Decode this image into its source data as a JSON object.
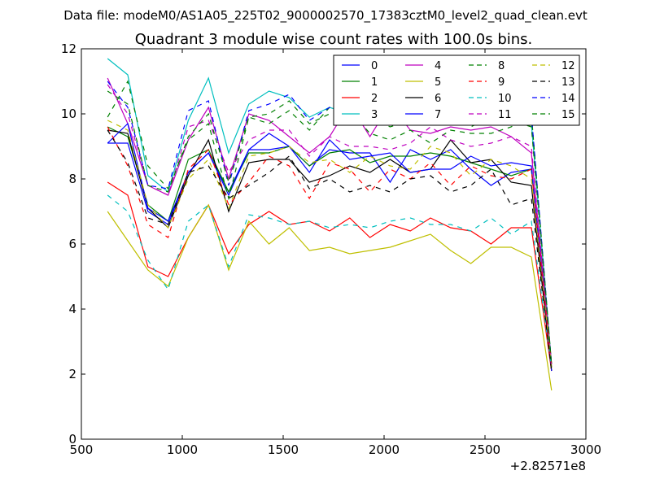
{
  "header": {
    "data_file": "Data file: modeM0/AS1A05_225T02_9000002570_17383cztM0_level2_quad_clean.evt"
  },
  "chart_data": {
    "type": "line",
    "title": "Quadrant 3 module wise count rates with 100.0s bins.",
    "xlabel": "",
    "ylabel": "",
    "xlim": [
      500,
      3000
    ],
    "ylim": [
      0,
      12
    ],
    "x_offset_label": "+2.82571e8",
    "x_ticks": [
      "500",
      "1000",
      "1500",
      "2000",
      "2500",
      "3000"
    ],
    "y_ticks": [
      "0",
      "2",
      "4",
      "6",
      "8",
      "10",
      "12"
    ],
    "grid": false,
    "legend_position": "top-right",
    "legend_columns": 4,
    "x": [
      630,
      730,
      830,
      930,
      1030,
      1130,
      1230,
      1330,
      1430,
      1530,
      1630,
      1730,
      1830,
      1930,
      2030,
      2130,
      2230,
      2330,
      2430,
      2530,
      2630,
      2730,
      2830
    ],
    "series": [
      {
        "name": "0",
        "color": "#0000ff",
        "dash": "solid",
        "values": [
          9.1,
          9.1,
          7.0,
          6.6,
          8.2,
          8.8,
          7.6,
          8.9,
          8.9,
          9.0,
          8.4,
          8.9,
          8.8,
          8.8,
          7.9,
          8.9,
          8.6,
          8.9,
          8.3,
          7.8,
          8.2,
          8.3,
          2.2
        ]
      },
      {
        "name": "1",
        "color": "#008000",
        "dash": "solid",
        "values": [
          9.6,
          9.3,
          7.2,
          6.7,
          8.6,
          8.9,
          7.6,
          8.8,
          8.8,
          9.0,
          8.4,
          8.8,
          8.9,
          8.5,
          8.7,
          8.7,
          8.8,
          8.7,
          8.5,
          8.3,
          8.1,
          8.3,
          2.2
        ]
      },
      {
        "name": "2",
        "color": "#ff0000",
        "dash": "solid",
        "values": [
          7.9,
          7.5,
          5.3,
          5.0,
          6.2,
          7.2,
          5.7,
          6.6,
          7.0,
          6.6,
          6.7,
          6.4,
          6.8,
          6.2,
          6.6,
          6.4,
          6.8,
          6.5,
          6.4,
          6.0,
          6.5,
          6.5,
          2.1
        ]
      },
      {
        "name": "3",
        "color": "#00bfbf",
        "dash": "solid",
        "values": [
          11.7,
          11.2,
          8.1,
          7.6,
          9.8,
          11.1,
          8.8,
          10.3,
          10.7,
          10.5,
          9.9,
          10.2,
          10.0,
          9.9,
          10.2,
          10.1,
          10.3,
          10.1,
          9.8,
          10.0,
          9.9,
          9.7,
          2.3
        ]
      },
      {
        "name": "4",
        "color": "#bf00bf",
        "dash": "solid",
        "values": [
          11.1,
          9.7,
          7.8,
          7.5,
          9.2,
          10.2,
          8.0,
          10.0,
          9.8,
          9.3,
          8.8,
          9.3,
          10.3,
          9.3,
          10.3,
          9.5,
          9.4,
          9.6,
          9.5,
          9.6,
          9.3,
          8.8,
          2.3
        ]
      },
      {
        "name": "5",
        "color": "#bfbf00",
        "dash": "solid",
        "values": [
          7.0,
          6.1,
          5.2,
          4.7,
          6.2,
          7.2,
          5.2,
          6.7,
          6.0,
          6.5,
          5.8,
          5.9,
          5.7,
          5.8,
          5.9,
          6.1,
          6.3,
          5.8,
          5.4,
          5.9,
          5.9,
          5.6,
          1.5
        ]
      },
      {
        "name": "6",
        "color": "#000000",
        "dash": "solid",
        "values": [
          9.5,
          9.4,
          7.1,
          6.5,
          8.1,
          9.2,
          7.0,
          8.5,
          8.6,
          8.6,
          7.9,
          8.1,
          8.4,
          8.2,
          8.6,
          8.2,
          8.3,
          9.2,
          8.5,
          8.6,
          7.9,
          7.8,
          2.1
        ]
      },
      {
        "name": "7",
        "color": "#0000ff",
        "dash": "solid",
        "values": [
          9.1,
          9.7,
          7.1,
          6.7,
          8.2,
          8.8,
          7.5,
          8.9,
          9.4,
          9.0,
          8.2,
          9.2,
          8.6,
          8.7,
          8.8,
          8.2,
          8.3,
          8.3,
          8.7,
          8.4,
          8.5,
          8.4,
          2.1
        ]
      },
      {
        "name": "8",
        "color": "#008000",
        "dash": "dashed",
        "values": [
          9.9,
          11.0,
          8.4,
          7.7,
          9.2,
          9.7,
          7.4,
          9.9,
          9.7,
          10.1,
          9.5,
          10.2,
          10.1,
          9.4,
          9.2,
          9.5,
          9.1,
          9.5,
          9.4,
          9.4,
          9.6,
          10.0,
          2.3
        ]
      },
      {
        "name": "9",
        "color": "#ff0000",
        "dash": "dashed",
        "values": [
          9.6,
          8.4,
          6.6,
          6.2,
          8.3,
          8.9,
          7.2,
          7.9,
          8.7,
          8.4,
          7.4,
          8.5,
          8.3,
          7.6,
          8.3,
          8.0,
          8.5,
          7.8,
          8.4,
          8.1,
          8.0,
          8.3,
          2.2
        ]
      },
      {
        "name": "10",
        "color": "#00bfbf",
        "dash": "dashed",
        "values": [
          7.5,
          7.0,
          5.5,
          4.6,
          6.7,
          7.2,
          5.3,
          6.9,
          6.8,
          6.6,
          6.7,
          6.5,
          6.6,
          6.5,
          6.7,
          6.8,
          6.6,
          6.6,
          6.4,
          6.8,
          6.3,
          6.7,
          2.2
        ]
      },
      {
        "name": "11",
        "color": "#bf00bf",
        "dash": "dashed",
        "values": [
          10.9,
          10.0,
          7.8,
          7.5,
          9.6,
          9.8,
          8.2,
          9.2,
          9.5,
          9.5,
          8.7,
          9.3,
          9.0,
          9.0,
          8.9,
          9.1,
          9.6,
          9.2,
          9.0,
          9.1,
          9.3,
          9.0,
          2.3
        ]
      },
      {
        "name": "12",
        "color": "#bfbf00",
        "dash": "dashed",
        "values": [
          9.8,
          9.5,
          7.2,
          6.5,
          8.0,
          8.6,
          7.1,
          8.7,
          8.8,
          9.0,
          8.5,
          8.6,
          8.2,
          8.7,
          8.4,
          8.3,
          9.0,
          8.8,
          8.1,
          8.6,
          8.4,
          8.0,
          2.2
        ]
      },
      {
        "name": "13",
        "color": "#000000",
        "dash": "dashed",
        "values": [
          9.5,
          8.5,
          6.8,
          6.6,
          8.2,
          8.4,
          7.4,
          7.8,
          8.2,
          8.7,
          7.7,
          8.0,
          7.6,
          7.8,
          7.6,
          8.0,
          8.1,
          7.6,
          7.8,
          8.3,
          7.2,
          7.4,
          2.1
        ]
      },
      {
        "name": "14",
        "color": "#0000ff",
        "dash": "dashed",
        "values": [
          11.0,
          10.2,
          7.8,
          7.7,
          10.1,
          10.4,
          7.8,
          10.1,
          10.3,
          10.6,
          9.8,
          10.2,
          9.9,
          10.2,
          10.4,
          10.3,
          10.5,
          10.6,
          10.3,
          10.2,
          10.1,
          10.0,
          2.3
        ]
      },
      {
        "name": "15",
        "color": "#008000",
        "dash": "dashed",
        "values": [
          10.7,
          10.3,
          7.8,
          7.6,
          9.3,
          10.0,
          7.9,
          9.9,
          10.0,
          10.4,
          9.7,
          10.0,
          10.1,
          9.9,
          9.6,
          9.8,
          10.0,
          9.9,
          9.6,
          9.9,
          9.8,
          9.6,
          2.3
        ]
      }
    ]
  }
}
